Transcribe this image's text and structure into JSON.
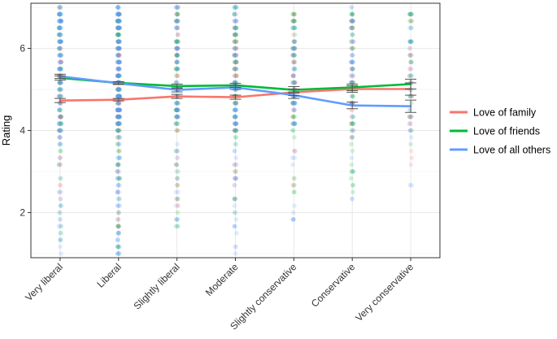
{
  "chart_data": {
    "type": "line",
    "title": "",
    "xlabel": "",
    "ylabel": "Rating",
    "ylim": [
      0.9,
      7.1
    ],
    "yticks": [
      2,
      4,
      6
    ],
    "categories": [
      "Very liberal",
      "Liberal",
      "Slightly liberal",
      "Moderate",
      "Slightly conservative",
      "Conservative",
      "Very conservative"
    ],
    "grid": true,
    "legend_position": "right",
    "series": [
      {
        "name": "Love of family",
        "color": "#f8766d",
        "values": [
          4.73,
          4.75,
          4.83,
          4.81,
          4.93,
          5.01,
          5.01
        ],
        "errors": [
          0.05,
          0.03,
          0.05,
          0.05,
          0.08,
          0.08,
          0.15
        ],
        "jitter": {
          "min": [
            1.6,
            1.6,
            2.1,
            2.0,
            2.6,
            2.8,
            3.1
          ],
          "max": [
            7.0,
            7.0,
            7.0,
            7.0,
            6.9,
            7.0,
            6.8
          ],
          "n": [
            60,
            110,
            60,
            60,
            45,
            40,
            25
          ]
        }
      },
      {
        "name": "Love of friends",
        "color": "#00ba38",
        "values": [
          5.28,
          5.16,
          5.08,
          5.1,
          4.99,
          5.05,
          5.13
        ],
        "errors": [
          0.05,
          0.03,
          0.05,
          0.05,
          0.08,
          0.08,
          0.12
        ],
        "jitter": {
          "min": [
            1.1,
            1.0,
            1.6,
            1.8,
            2.3,
            2.5,
            3.3
          ],
          "max": [
            7.0,
            7.0,
            7.0,
            7.0,
            6.9,
            7.0,
            6.9
          ],
          "n": [
            60,
            110,
            60,
            60,
            45,
            40,
            25
          ]
        }
      },
      {
        "name": "Love of all others",
        "color": "#619cff",
        "values": [
          5.32,
          5.15,
          4.99,
          5.05,
          4.86,
          4.61,
          4.59
        ],
        "errors": [
          0.05,
          0.03,
          0.05,
          0.05,
          0.08,
          0.08,
          0.15
        ],
        "jitter": {
          "min": [
            1.0,
            1.0,
            1.5,
            1.0,
            1.7,
            2.0,
            1.7
          ],
          "max": [
            7.0,
            7.0,
            7.0,
            7.0,
            6.9,
            7.0,
            6.9
          ],
          "n": [
            130,
            220,
            80,
            90,
            60,
            50,
            30
          ]
        }
      }
    ]
  }
}
